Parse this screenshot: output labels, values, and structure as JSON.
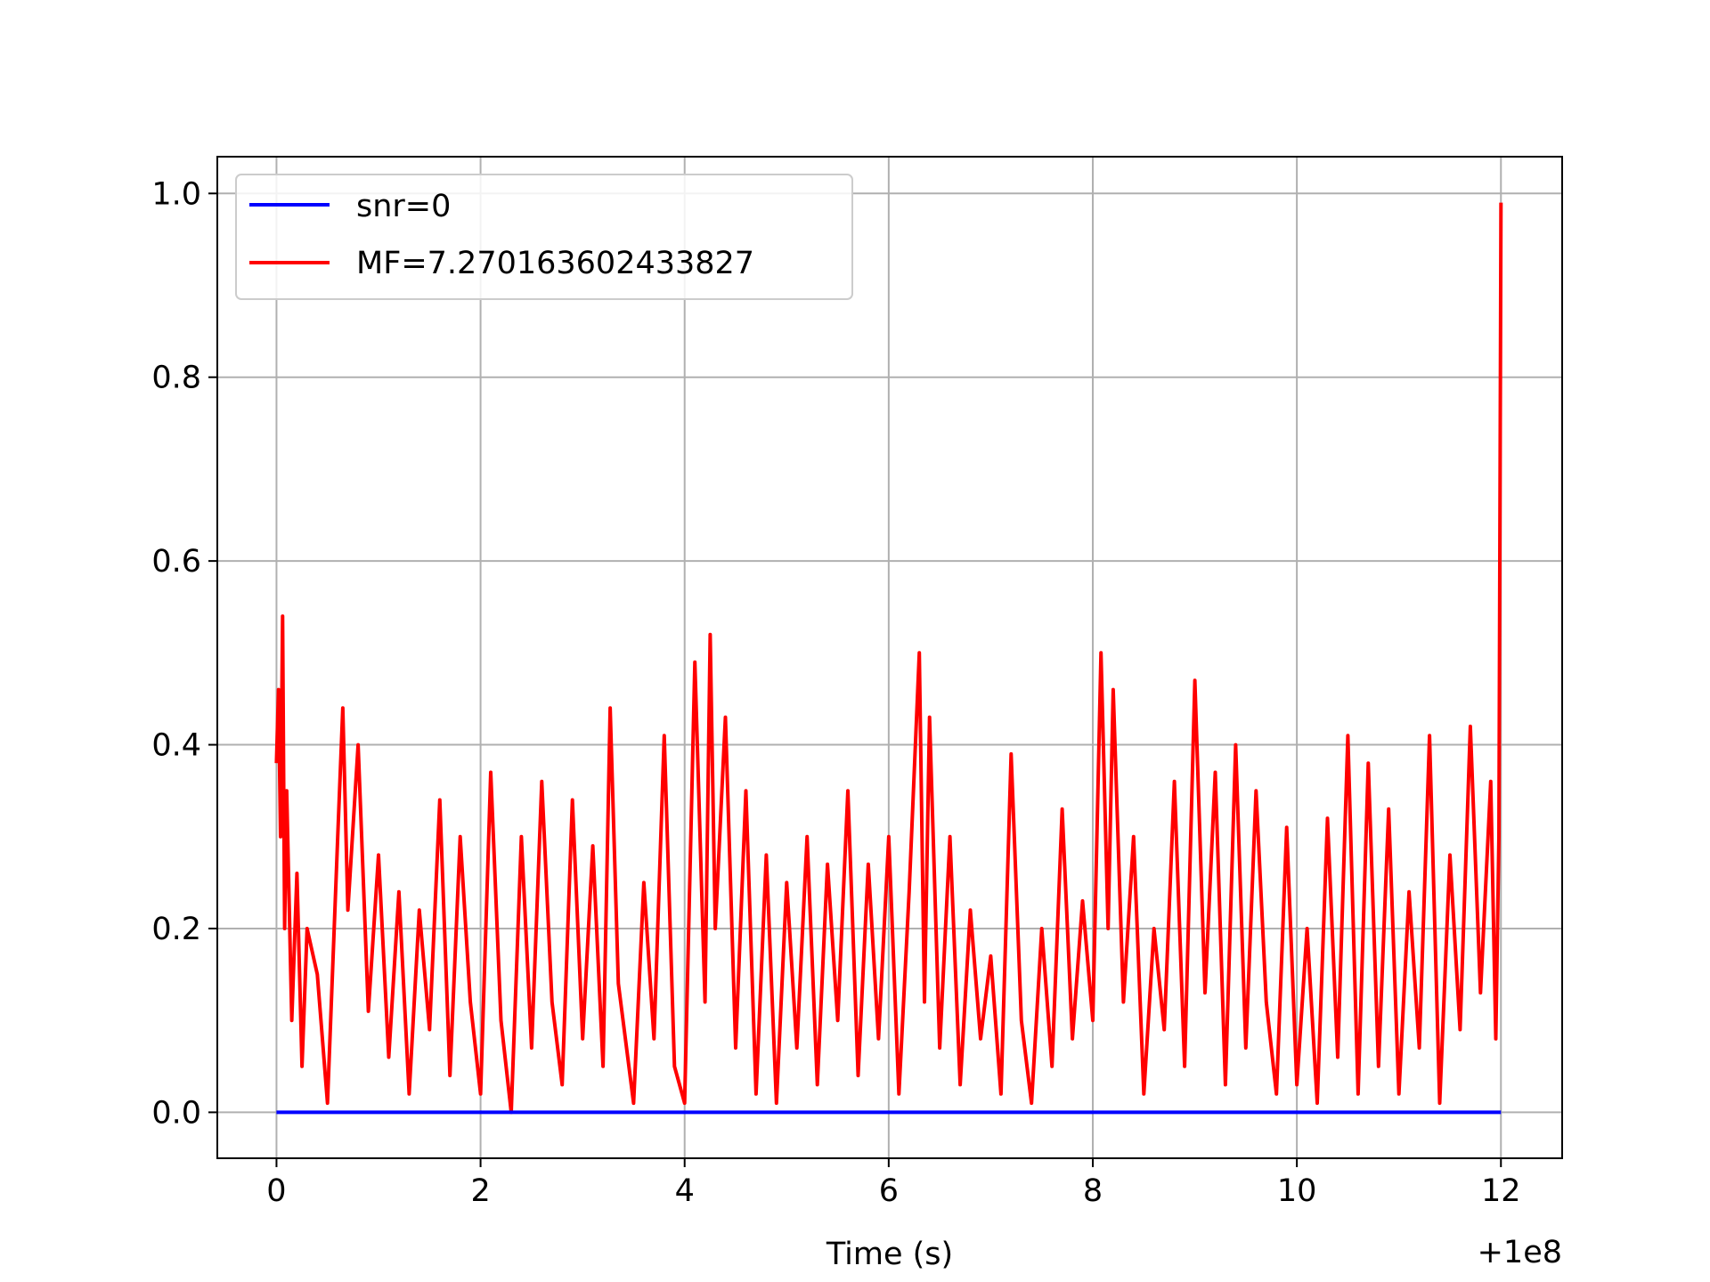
{
  "chart_data": {
    "type": "line",
    "title": "",
    "xlabel": "Time (s)",
    "ylabel": "",
    "x_offset_label": "+1e8",
    "xlim": [
      -0.58,
      12.6
    ],
    "ylim": [
      -0.05,
      1.04
    ],
    "x_ticks": [
      0,
      2,
      4,
      6,
      8,
      10,
      12
    ],
    "x_tick_labels": [
      "0",
      "2",
      "4",
      "6",
      "8",
      "10",
      "12"
    ],
    "y_ticks": [
      0.0,
      0.2,
      0.4,
      0.6,
      0.8,
      1.0
    ],
    "y_tick_labels": [
      "0.0",
      "0.2",
      "0.4",
      "0.6",
      "0.8",
      "1.0"
    ],
    "grid": true,
    "legend_position": "top-left",
    "series": [
      {
        "name": "snr=0",
        "color": "#0000ff",
        "x": [
          0,
          12
        ],
        "y": [
          0,
          0
        ]
      },
      {
        "name": "MF=7.270163602433827",
        "color": "#ff0000",
        "x": [
          0,
          0.02,
          0.04,
          0.06,
          0.08,
          0.1,
          0.15,
          0.2,
          0.25,
          0.3,
          0.4,
          0.5,
          0.6,
          0.65,
          0.7,
          0.8,
          0.9,
          1.0,
          1.1,
          1.2,
          1.3,
          1.4,
          1.5,
          1.6,
          1.7,
          1.8,
          1.9,
          2.0,
          2.1,
          2.2,
          2.3,
          2.4,
          2.5,
          2.6,
          2.7,
          2.8,
          2.9,
          3.0,
          3.1,
          3.2,
          3.27,
          3.35,
          3.5,
          3.6,
          3.7,
          3.8,
          3.9,
          4.0,
          4.1,
          4.2,
          4.25,
          4.3,
          4.4,
          4.5,
          4.6,
          4.7,
          4.8,
          4.9,
          5.0,
          5.1,
          5.2,
          5.3,
          5.4,
          5.5,
          5.6,
          5.7,
          5.8,
          5.9,
          6.0,
          6.1,
          6.2,
          6.3,
          6.35,
          6.4,
          6.5,
          6.6,
          6.7,
          6.8,
          6.9,
          7.0,
          7.1,
          7.2,
          7.3,
          7.4,
          7.5,
          7.6,
          7.7,
          7.8,
          7.9,
          8.0,
          8.08,
          8.15,
          8.2,
          8.3,
          8.4,
          8.5,
          8.6,
          8.7,
          8.8,
          8.9,
          9.0,
          9.1,
          9.2,
          9.3,
          9.4,
          9.5,
          9.6,
          9.7,
          9.8,
          9.9,
          10.0,
          10.1,
          10.2,
          10.3,
          10.4,
          10.5,
          10.6,
          10.7,
          10.8,
          10.9,
          11.0,
          11.1,
          11.2,
          11.3,
          11.4,
          11.5,
          11.6,
          11.7,
          11.8,
          11.9,
          11.95,
          11.98,
          12.0
        ],
        "y": [
          0.38,
          0.46,
          0.3,
          0.54,
          0.2,
          0.35,
          0.1,
          0.26,
          0.05,
          0.2,
          0.15,
          0.01,
          0.3,
          0.44,
          0.22,
          0.4,
          0.11,
          0.28,
          0.06,
          0.24,
          0.02,
          0.22,
          0.09,
          0.34,
          0.04,
          0.3,
          0.12,
          0.02,
          0.37,
          0.1,
          0.0,
          0.3,
          0.07,
          0.36,
          0.12,
          0.03,
          0.34,
          0.08,
          0.29,
          0.05,
          0.44,
          0.14,
          0.01,
          0.25,
          0.08,
          0.41,
          0.05,
          0.01,
          0.49,
          0.12,
          0.52,
          0.2,
          0.43,
          0.07,
          0.35,
          0.02,
          0.28,
          0.01,
          0.25,
          0.07,
          0.3,
          0.03,
          0.27,
          0.1,
          0.35,
          0.04,
          0.27,
          0.08,
          0.3,
          0.02,
          0.24,
          0.5,
          0.12,
          0.43,
          0.07,
          0.3,
          0.03,
          0.22,
          0.08,
          0.17,
          0.02,
          0.39,
          0.1,
          0.01,
          0.2,
          0.05,
          0.33,
          0.08,
          0.23,
          0.1,
          0.5,
          0.2,
          0.46,
          0.12,
          0.3,
          0.02,
          0.2,
          0.09,
          0.36,
          0.05,
          0.47,
          0.13,
          0.37,
          0.03,
          0.4,
          0.07,
          0.35,
          0.12,
          0.02,
          0.31,
          0.03,
          0.2,
          0.01,
          0.32,
          0.06,
          0.41,
          0.02,
          0.38,
          0.05,
          0.33,
          0.02,
          0.24,
          0.07,
          0.41,
          0.01,
          0.28,
          0.09,
          0.42,
          0.13,
          0.36,
          0.08,
          0.3,
          0.99
        ]
      }
    ]
  }
}
